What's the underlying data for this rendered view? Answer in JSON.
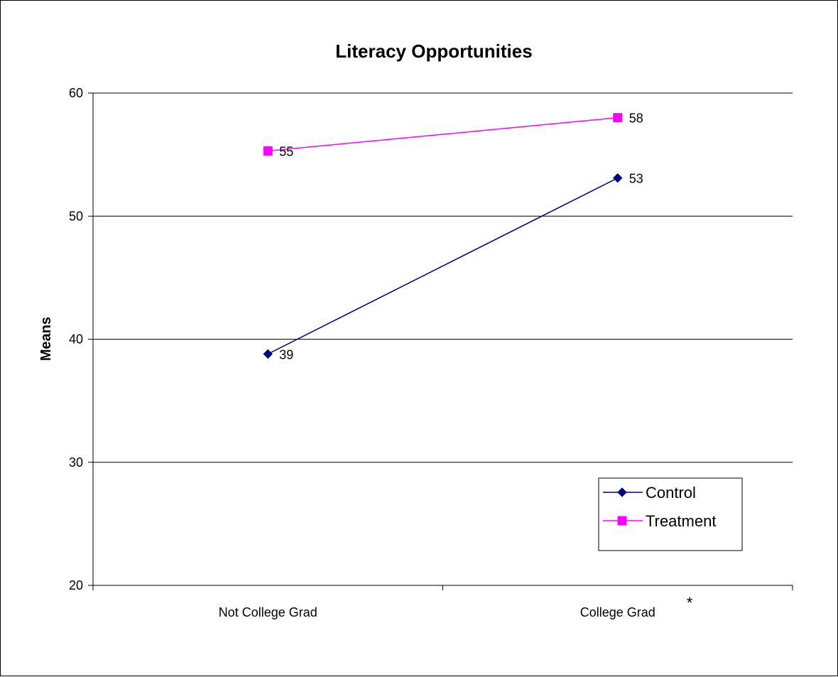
{
  "chart_data": {
    "type": "line",
    "title": "Literacy Opportunities",
    "xlabel": "",
    "ylabel": "Means",
    "categories": [
      "Not College Grad",
      "College Grad"
    ],
    "ylim": [
      20,
      60
    ],
    "yticks": [
      20,
      30,
      40,
      50,
      60
    ],
    "grid": true,
    "legend_position": "bottom-right",
    "annotation": "*",
    "series": [
      {
        "name": "Control",
        "values": [
          38.8,
          53.1
        ],
        "labels": [
          "39",
          "53"
        ],
        "color": "#000080",
        "marker": "diamond"
      },
      {
        "name": "Treatment",
        "values": [
          55.3,
          58.0
        ],
        "labels": [
          "55",
          "58"
        ],
        "color": "#FF00FF",
        "marker": "square"
      }
    ]
  }
}
